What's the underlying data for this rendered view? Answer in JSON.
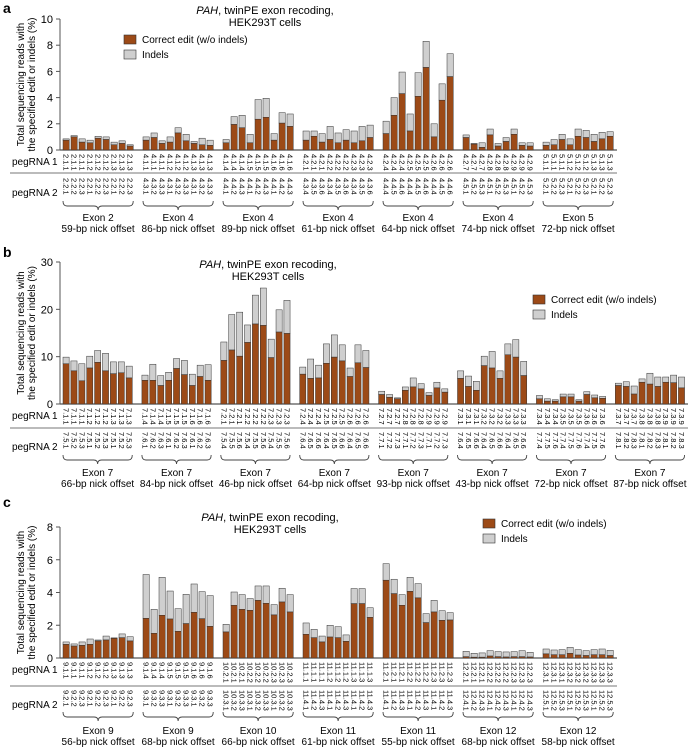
{
  "colors": {
    "correct": "#9c4a17",
    "indels": "#cfcfcf",
    "outline": "#333333"
  },
  "legend": {
    "correct_label": "Correct edit (w/o indels)",
    "indels_label": "Indels"
  },
  "row_labels": {
    "pegRNA1": "pegRNA 1",
    "pegRNA2": "pegRNA 2"
  },
  "chart_data": [
    {
      "panel": "a",
      "type": "bar",
      "stacked": true,
      "title_italic": "PAH",
      "title_rest": ", twinPE exon recoding,",
      "title_line2": "HEK293T cells",
      "ylabel_line1": "Total sequencing reads with",
      "ylabel_line2": "the specified edit or indels (%)",
      "ylim": [
        0,
        10
      ],
      "yticks": [
        "0",
        "2",
        "4",
        "6",
        "8",
        "10"
      ],
      "legend_position": "top-left",
      "groups": [
        {
          "exon": "Exon 2",
          "offset": "59-bp nick offset",
          "pegRNA1": [
            "2.1.1",
            "2.1.2",
            "2.1.3"
          ],
          "pegRNA2": [
            "2.2.1",
            "2.2.2",
            "2.2.3"
          ],
          "correct": [
            0.75,
            1.0,
            0.6,
            0.55,
            0.9,
            0.8,
            0.4,
            0.5,
            0.3
          ],
          "indels": [
            0.1,
            0.1,
            0.25,
            0.2,
            0.15,
            0.2,
            0.2,
            0.2,
            0.1
          ]
        },
        {
          "exon": "Exon 4",
          "offset": "86-bp nick offset",
          "pegRNA1": [
            "4.1.1",
            "4.1.2",
            "4.1.3"
          ],
          "pegRNA2": [
            "4.3.1",
            "4.3.2",
            "4.3.3"
          ],
          "correct": [
            0.75,
            0.95,
            0.5,
            0.6,
            1.3,
            0.7,
            0.5,
            0.4,
            0.35
          ],
          "indels": [
            0.25,
            0.35,
            0.2,
            0.4,
            0.4,
            0.5,
            0.15,
            0.5,
            0.4
          ]
        },
        {
          "exon": "Exon 4",
          "offset": "89-bp nick offset",
          "pegRNA1": [
            "4.1.4",
            "4.1.5",
            "4.1.6"
          ],
          "pegRNA2": [
            "4.4.1",
            "4.4.2",
            "4.4.3"
          ],
          "correct": [
            0.55,
            1.95,
            1.7,
            0.55,
            2.35,
            2.5,
            0.75,
            2.05,
            1.8
          ],
          "indels": [
            0.25,
            0.6,
            0.95,
            0.65,
            1.5,
            1.45,
            0.5,
            0.8,
            0.95
          ]
        },
        {
          "exon": "Exon 4",
          "offset": "61-bp nick offset",
          "pegRNA1": [
            "4.2.1",
            "4.2.2",
            "4.2.3"
          ],
          "pegRNA2": [
            "4.3.4",
            "4.3.5",
            "4.3.6"
          ],
          "correct": [
            0.75,
            1.05,
            0.6,
            0.8,
            0.55,
            0.75,
            0.55,
            0.7,
            0.95
          ],
          "indels": [
            0.7,
            0.4,
            0.65,
            1.0,
            0.75,
            0.8,
            0.9,
            1.1,
            0.95
          ]
        },
        {
          "exon": "Exon 4",
          "offset": "64-bp nick offset",
          "pegRNA1": [
            "4.2.4",
            "4.2.5",
            "4.2.6"
          ],
          "pegRNA2": [
            "4.4.4",
            "4.4.5",
            "4.4.6"
          ],
          "correct": [
            1.25,
            2.65,
            4.3,
            1.45,
            4.1,
            6.3,
            1.0,
            3.8,
            5.6
          ],
          "indels": [
            0.95,
            1.35,
            1.65,
            1.3,
            1.8,
            2.0,
            1.0,
            1.25,
            1.75
          ]
        },
        {
          "exon": "Exon 4",
          "offset": "74-bp nick offset",
          "pegRNA1": [
            "4.2.7",
            "4.2.8",
            "4.2.9"
          ],
          "pegRNA2": [
            "4.5.1",
            "4.5.2",
            "4.5.3"
          ],
          "correct": [
            0.95,
            0.45,
            0.2,
            1.15,
            0.3,
            0.65,
            1.2,
            0.35,
            0.3
          ],
          "indels": [
            0.2,
            0.05,
            0.35,
            0.45,
            0.2,
            0.3,
            0.4,
            0.2,
            0.25
          ]
        },
        {
          "exon": "Exon 5",
          "offset": "72-bp nick offset",
          "pegRNA1": [
            "5.1.1",
            "5.1.2",
            "5.1.3"
          ],
          "pegRNA2": [
            "5.2.1",
            "5.2.2",
            "5.2.3"
          ],
          "correct": [
            0.35,
            0.4,
            0.8,
            0.4,
            1.05,
            0.95,
            0.65,
            0.85,
            1.05
          ],
          "indels": [
            0.25,
            0.4,
            0.4,
            0.45,
            0.55,
            0.55,
            0.55,
            0.5,
            0.35
          ]
        }
      ]
    },
    {
      "panel": "b",
      "type": "bar",
      "stacked": true,
      "title_italic": "PAH",
      "title_rest": ", twinPE exon recoding,",
      "title_line2": "HEK293T cells",
      "ylabel_line1": "Total sequencing reads with",
      "ylabel_line2": "the specified edit or indels (%)",
      "ylim": [
        0,
        30
      ],
      "yticks": [
        "0",
        "10",
        "20",
        "30"
      ],
      "legend_position": "top-right",
      "groups": [
        {
          "exon": "Exon 7",
          "offset": "66-bp nick offset",
          "pegRNA1": [
            "7.1.1",
            "7.1.2",
            "7.1.3"
          ],
          "pegRNA2": [
            "7.5.1",
            "7.5.2",
            "7.5.3"
          ],
          "correct": [
            8.5,
            7.0,
            4.9,
            7.6,
            8.8,
            7.0,
            6.4,
            6.6,
            5.5
          ],
          "indels": [
            1.4,
            2.1,
            3.6,
            2.5,
            2.5,
            3.7,
            2.5,
            2.3,
            2.5
          ]
        },
        {
          "exon": "Exon 7",
          "offset": "84-bp nick offset",
          "pegRNA1": [
            "7.1.4",
            "7.1.5",
            "7.1.6"
          ],
          "pegRNA2": [
            "7.6.1",
            "7.6.2",
            "7.6.3"
          ],
          "correct": [
            5.0,
            5.0,
            3.9,
            5.0,
            7.5,
            6.2,
            3.9,
            5.8,
            5.0
          ],
          "indels": [
            1.1,
            3.4,
            2.1,
            1.7,
            2.1,
            3.0,
            2.4,
            2.4,
            3.3
          ]
        },
        {
          "exon": "Exon 7",
          "offset": "46-bp nick offset",
          "pegRNA1": [
            "7.2.1",
            "7.2.2",
            "7.2.3"
          ],
          "pegRNA2": [
            "7.5.4",
            "7.5.5",
            "7.5.6"
          ],
          "correct": [
            9.2,
            11.4,
            10.1,
            13.0,
            16.9,
            16.6,
            9.8,
            15.2,
            14.9
          ],
          "indels": [
            3.9,
            7.5,
            9.3,
            3.7,
            6.1,
            7.9,
            3.9,
            4.7,
            7.0
          ]
        },
        {
          "exon": "Exon 7",
          "offset": "64-bp nick offset",
          "pegRNA1": [
            "7.2.4",
            "7.2.5",
            "7.2.6"
          ],
          "pegRNA2": [
            "7.6.4",
            "7.6.5",
            "7.6.6"
          ],
          "correct": [
            6.3,
            5.4,
            5.5,
            8.6,
            9.9,
            9.1,
            5.8,
            8.7,
            7.7
          ],
          "indels": [
            1.5,
            4.1,
            2.7,
            4.1,
            4.7,
            3.4,
            1.8,
            3.8,
            3.6
          ]
        },
        {
          "exon": "Exon 7",
          "offset": "93-bp nick offset",
          "pegRNA1": [
            "7.2.7",
            "7.2.8",
            "7.2.9"
          ],
          "pegRNA2": [
            "7.7.1",
            "7.7.2",
            "7.7.3"
          ],
          "correct": [
            2.0,
            1.4,
            1.1,
            2.9,
            3.6,
            3.2,
            1.8,
            3.4,
            2.5
          ],
          "indels": [
            0.7,
            0.6,
            0.2,
            0.7,
            1.9,
            1.1,
            0.6,
            1.2,
            0.7
          ]
        },
        {
          "exon": "Exon 7",
          "offset": "43-bp nick offset",
          "pegRNA1": [
            "7.3.1",
            "7.3.2",
            "7.3.3"
          ],
          "pegRNA2": [
            "7.6.4",
            "7.6.5",
            "7.6.6"
          ],
          "correct": [
            5.4,
            3.7,
            2.9,
            8.1,
            7.6,
            5.4,
            10.4,
            9.9,
            6.0
          ],
          "indels": [
            1.6,
            2.2,
            1.9,
            2.0,
            3.5,
            1.6,
            2.3,
            3.7,
            3.0
          ]
        },
        {
          "exon": "Exon 7",
          "offset": "72-bp nick offset",
          "pegRNA1": [
            "7.3.4",
            "7.3.5",
            "7.3.6"
          ],
          "pegRNA2": [
            "7.7.4",
            "7.7.5",
            "7.7.6"
          ],
          "correct": [
            1.1,
            0.6,
            0.6,
            1.5,
            1.5,
            0.6,
            2.0,
            1.3,
            1.2
          ],
          "indels": [
            0.7,
            0.5,
            0.3,
            0.6,
            0.6,
            0.3,
            0.6,
            0.6,
            0.4
          ]
        },
        {
          "exon": "Exon 7",
          "offset": "87-bp nick offset",
          "pegRNA1": [
            "7.3.7",
            "7.3.8",
            "7.3.9"
          ],
          "pegRNA2": [
            "7.8.1",
            "7.8.2",
            "7.8.3"
          ],
          "correct": [
            3.9,
            3.7,
            2.1,
            4.6,
            4.2,
            3.7,
            4.6,
            4.5,
            3.4
          ],
          "indels": [
            0.5,
            1.0,
            1.7,
            0.7,
            2.3,
            2.0,
            1.1,
            1.6,
            2.3
          ]
        }
      ]
    },
    {
      "panel": "c",
      "type": "bar",
      "stacked": true,
      "title_italic": "PAH",
      "title_rest": ", twinPE exon recoding,",
      "title_line2": "HEK293T cells",
      "ylabel_line1": "Total sequencing reads with",
      "ylabel_line2": "the specified edit or indels (%)",
      "ylim": [
        0,
        8
      ],
      "yticks": [
        "0",
        "2",
        "4",
        "6",
        "8"
      ],
      "legend_position": "top-right",
      "groups": [
        {
          "exon": "Exon 9",
          "offset": "56-bp nick offset",
          "pegRNA1": [
            "9.1.1",
            "9.1.2",
            "9.1.3"
          ],
          "pegRNA2": [
            "9.2.1",
            "9.2.2",
            "9.2.3"
          ],
          "correct": [
            0.83,
            0.73,
            0.77,
            0.83,
            1.04,
            1.1,
            1.2,
            1.24,
            1.04
          ],
          "indels": [
            0.15,
            0.13,
            0.21,
            0.33,
            0.06,
            0.24,
            0.03,
            0.23,
            0.26
          ]
        },
        {
          "exon": "Exon 9",
          "offset": "68-bp nick offset",
          "pegRNA1": [
            "9.1.4",
            "9.1.5",
            "9.1.6"
          ],
          "pegRNA2": [
            "9.3.1",
            "9.3.2",
            "9.3.3"
          ],
          "correct": [
            2.42,
            1.51,
            2.61,
            2.38,
            1.63,
            2.1,
            2.79,
            2.4,
            1.93
          ],
          "indels": [
            2.68,
            1.46,
            2.32,
            1.71,
            1.38,
            1.79,
            1.73,
            1.65,
            1.88
          ]
        },
        {
          "exon": "Exon 10",
          "offset": "66-bp nick offset",
          "pegRNA1": [
            "10.2.1",
            "10.2.2",
            "10.2.3"
          ],
          "pegRNA2": [
            "10.3.1",
            "10.3.2",
            "10.3.3"
          ],
          "correct": [
            1.59,
            3.22,
            2.97,
            2.91,
            3.52,
            3.34,
            2.63,
            3.42,
            2.81
          ],
          "indels": [
            0.47,
            0.81,
            0.9,
            0.72,
            0.88,
            1.06,
            0.63,
            0.84,
            1.06
          ]
        },
        {
          "exon": "Exon 11",
          "offset": "61-bp nick offset",
          "pegRNA1": [
            "11.1.1",
            "11.1.2",
            "11.1.3"
          ],
          "pegRNA2": [
            "11.4.1",
            "11.4.2",
            "11.4.3"
          ],
          "correct": [
            1.45,
            1.24,
            0.98,
            1.28,
            1.24,
            1.02,
            3.32,
            3.32,
            2.48
          ],
          "indels": [
            0.69,
            0.51,
            0.36,
            0.72,
            0.67,
            0.39,
            0.92,
            0.92,
            0.59
          ]
        },
        {
          "exon": "Exon 11",
          "offset": "55-bp nick offset",
          "pegRNA1": [
            "11.2.1",
            "11.2.2",
            "11.2.3"
          ],
          "pegRNA2": [
            "11.4.1",
            "11.4.2",
            "11.4.3"
          ],
          "correct": [
            4.75,
            3.93,
            3.22,
            4.07,
            3.67,
            2.16,
            2.81,
            2.3,
            2.32
          ],
          "indels": [
            1.01,
            0.88,
            0.65,
            0.86,
            0.87,
            0.55,
            0.71,
            0.59,
            0.45
          ]
        },
        {
          "exon": "Exon 12",
          "offset": "68-bp nick offset",
          "pegRNA1": [
            "12.2.1",
            "12.2.2",
            "12.2.3"
          ],
          "pegRNA2": [
            "12.4.1",
            "12.4.2",
            "12.4.3"
          ],
          "correct": [
            0.08,
            0.05,
            0.05,
            0.12,
            0.08,
            0.06,
            0.08,
            0.08,
            0.06
          ],
          "indels": [
            0.33,
            0.24,
            0.26,
            0.33,
            0.31,
            0.31,
            0.31,
            0.37,
            0.29
          ]
        },
        {
          "exon": "Exon 12",
          "offset": "58-bp nick offset",
          "pegRNA1": [
            "12.3.1",
            "12.3.2",
            "12.3.3"
          ],
          "pegRNA2": [
            "12.5.1",
            "12.5.2",
            "12.5.3"
          ],
          "correct": [
            0.25,
            0.2,
            0.2,
            0.28,
            0.18,
            0.15,
            0.2,
            0.2,
            0.15
          ],
          "indels": [
            0.3,
            0.29,
            0.31,
            0.37,
            0.33,
            0.3,
            0.31,
            0.35,
            0.32
          ]
        }
      ]
    }
  ]
}
